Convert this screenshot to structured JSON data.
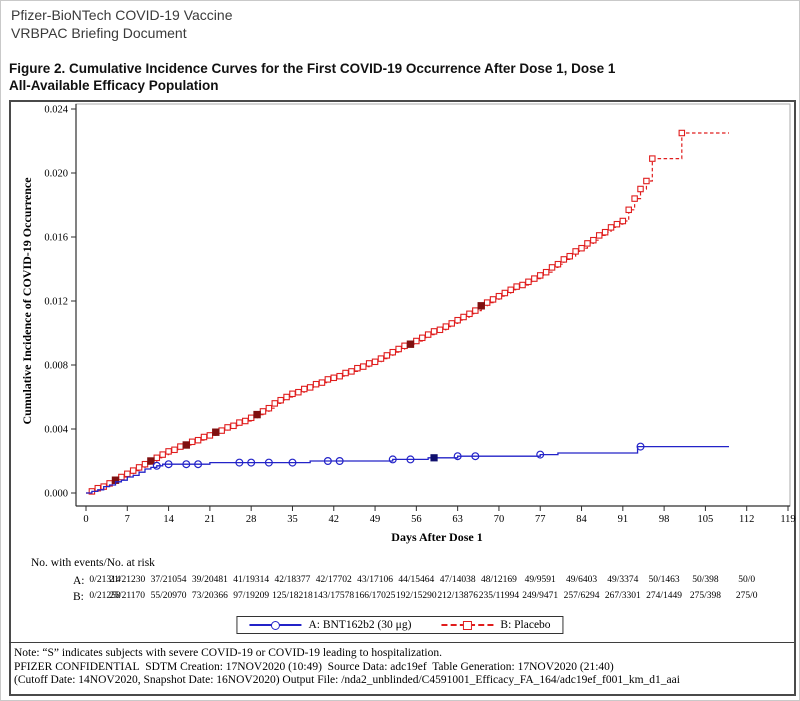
{
  "page": {
    "header_line1": "Pfizer-BioNTech COVID-19 Vaccine",
    "header_line2": "VRBPAC Briefing Document",
    "title_line1": "Figure 2. Cumulative Incidence Curves for the First COVID-19 Occurrence After Dose 1, Dose 1",
    "title_line2": "All-Available Efficacy Population"
  },
  "colors": {
    "blue": "#2323c8",
    "red": "#e01d1d",
    "dark_red": "#801010",
    "dark_blue": "#10106e",
    "frame": "#ababab",
    "axis": "#2e2e2e"
  },
  "chart_data": {
    "type": "line",
    "subtype": "kaplan-meier-step",
    "title": "",
    "xlabel": "Days After Dose 1",
    "ylabel": "Cumulative Incidence of COVID-19 Occurrence",
    "xlim": [
      0,
      119
    ],
    "ylim": [
      0,
      0.024
    ],
    "xticks": [
      0,
      7,
      14,
      21,
      28,
      35,
      42,
      49,
      56,
      63,
      70,
      77,
      84,
      91,
      98,
      105,
      112,
      119
    ],
    "ytick_labels": [
      "0.000",
      "0.004",
      "0.008",
      "0.012",
      "0.016",
      "0.020",
      "0.024"
    ],
    "grid": false,
    "legend_position": "bottom",
    "series": [
      {
        "name": "A: BNT162b2 (30 μg)",
        "line": "solid",
        "marker": "circle-open",
        "marker_days": [
          12,
          14,
          17,
          19,
          26,
          28,
          31,
          35,
          41,
          43,
          52,
          55,
          63,
          66,
          77,
          94
        ],
        "severe_marker_days": [
          59
        ],
        "step_points": [
          [
            0,
            0.0
          ],
          [
            1,
            0.0001
          ],
          [
            2,
            0.0002
          ],
          [
            3,
            0.0004
          ],
          [
            4,
            0.0005
          ],
          [
            5,
            0.0007
          ],
          [
            6,
            0.0008
          ],
          [
            7,
            0.001
          ],
          [
            8,
            0.0011
          ],
          [
            9,
            0.0013
          ],
          [
            10,
            0.0015
          ],
          [
            11,
            0.0016
          ],
          [
            12,
            0.0017
          ],
          [
            13,
            0.0018
          ],
          [
            17,
            0.0018
          ],
          [
            21,
            0.0019
          ],
          [
            31,
            0.0019
          ],
          [
            38,
            0.002
          ],
          [
            48,
            0.002
          ],
          [
            52,
            0.0021
          ],
          [
            58,
            0.0022
          ],
          [
            63,
            0.0023
          ],
          [
            72,
            0.0023
          ],
          [
            77,
            0.0024
          ],
          [
            80,
            0.0025
          ],
          [
            93.5,
            0.0029
          ],
          [
            109,
            0.0029
          ]
        ]
      },
      {
        "name": "B: Placebo",
        "line": "dashed",
        "marker": "square-open",
        "severe_marker_days": [
          5,
          11,
          17,
          22,
          29,
          55,
          67
        ],
        "step_points": [
          [
            0,
            0.0
          ],
          [
            1,
            0.0001
          ],
          [
            2,
            0.0003
          ],
          [
            3,
            0.0004
          ],
          [
            4,
            0.0006
          ],
          [
            5,
            0.0008
          ],
          [
            6,
            0.001
          ],
          [
            7,
            0.0012
          ],
          [
            8,
            0.0014
          ],
          [
            9,
            0.0016
          ],
          [
            10,
            0.0018
          ],
          [
            11,
            0.002
          ],
          [
            12,
            0.0022
          ],
          [
            13,
            0.0024
          ],
          [
            14,
            0.0026
          ],
          [
            15,
            0.0027
          ],
          [
            16,
            0.0029
          ],
          [
            17,
            0.003
          ],
          [
            18,
            0.0032
          ],
          [
            19,
            0.0033
          ],
          [
            20,
            0.0035
          ],
          [
            21,
            0.0036
          ],
          [
            22,
            0.0038
          ],
          [
            23,
            0.0039
          ],
          [
            24,
            0.0041
          ],
          [
            25,
            0.0042
          ],
          [
            26,
            0.0044
          ],
          [
            27,
            0.0045
          ],
          [
            28,
            0.0047
          ],
          [
            29,
            0.0049
          ],
          [
            30,
            0.0051
          ],
          [
            31,
            0.0053
          ],
          [
            32,
            0.0056
          ],
          [
            33,
            0.0058
          ],
          [
            34,
            0.006
          ],
          [
            35,
            0.0062
          ],
          [
            36,
            0.0063
          ],
          [
            37,
            0.0065
          ],
          [
            38,
            0.0066
          ],
          [
            39,
            0.0068
          ],
          [
            40,
            0.0069
          ],
          [
            41,
            0.0071
          ],
          [
            42,
            0.0072
          ],
          [
            43,
            0.0073
          ],
          [
            44,
            0.0075
          ],
          [
            45,
            0.0076
          ],
          [
            46,
            0.0078
          ],
          [
            47,
            0.0079
          ],
          [
            48,
            0.0081
          ],
          [
            49,
            0.0082
          ],
          [
            50,
            0.0084
          ],
          [
            51,
            0.0086
          ],
          [
            52,
            0.0088
          ],
          [
            53,
            0.009
          ],
          [
            54,
            0.0092
          ],
          [
            55,
            0.0093
          ],
          [
            56,
            0.0095
          ],
          [
            57,
            0.0097
          ],
          [
            58,
            0.0099
          ],
          [
            59,
            0.0101
          ],
          [
            60,
            0.0102
          ],
          [
            61,
            0.0104
          ],
          [
            62,
            0.0106
          ],
          [
            63,
            0.0108
          ],
          [
            64,
            0.011
          ],
          [
            65,
            0.0112
          ],
          [
            66,
            0.0114
          ],
          [
            67,
            0.0117
          ],
          [
            68,
            0.0119
          ],
          [
            69,
            0.0121
          ],
          [
            70,
            0.0123
          ],
          [
            71,
            0.0125
          ],
          [
            72,
            0.0127
          ],
          [
            73,
            0.0129
          ],
          [
            74,
            0.013
          ],
          [
            75,
            0.0132
          ],
          [
            76,
            0.0134
          ],
          [
            77,
            0.0136
          ],
          [
            78,
            0.0138
          ],
          [
            79,
            0.0141
          ],
          [
            80,
            0.0143
          ],
          [
            81,
            0.0146
          ],
          [
            82,
            0.0148
          ],
          [
            83,
            0.0151
          ],
          [
            84,
            0.0153
          ],
          [
            85,
            0.0156
          ],
          [
            86,
            0.0158
          ],
          [
            87,
            0.0161
          ],
          [
            88,
            0.0163
          ],
          [
            89,
            0.0166
          ],
          [
            90,
            0.0168
          ],
          [
            91,
            0.017
          ],
          [
            92,
            0.0177
          ],
          [
            93,
            0.0184
          ],
          [
            94,
            0.019
          ],
          [
            95,
            0.0195
          ],
          [
            96,
            0.0209
          ],
          [
            101,
            0.0225
          ],
          [
            109,
            0.0225
          ]
        ]
      }
    ]
  },
  "risk_table": {
    "caption": "No. with events/No. at risk",
    "col_days": [
      0,
      7,
      14,
      21,
      28,
      35,
      42,
      49,
      56,
      63,
      70,
      77,
      84,
      91,
      98,
      105,
      112
    ],
    "rows": [
      {
        "label": "A:",
        "values": [
          "0/21314",
          "21/21230",
          "37/21054",
          "39/20481",
          "41/19314",
          "42/18377",
          "42/17702",
          "43/17106",
          "44/15464",
          "47/14038",
          "48/12169",
          "49/9591",
          "49/6403",
          "49/3374",
          "50/1463",
          "50/398",
          "50/0"
        ]
      },
      {
        "label": "B:",
        "values": [
          "0/21258",
          "25/21170",
          "55/20970",
          "73/20366",
          "97/19209",
          "125/18218",
          "143/17578",
          "166/17025",
          "192/15290",
          "212/13876",
          "235/11994",
          "249/9471",
          "257/6294",
          "267/3301",
          "274/1449",
          "275/398",
          "275/0"
        ]
      }
    ]
  },
  "notes": {
    "line1": "Note: “S” indicates subjects with severe COVID-19 or COVID-19 leading to hospitalization.",
    "line2": "PFIZER CONFIDENTIAL  SDTM Creation: 17NOV2020 (10:49)  Source Data: adc19ef  Table Generation: 17NOV2020 (21:40)",
    "line3": "(Cutoff Date: 14NOV2020, Snapshot Date: 16NOV2020) Output File: /nda2_unblinded/C4591001_Efficacy_FA_164/adc19ef_f001_km_d1_aai"
  }
}
